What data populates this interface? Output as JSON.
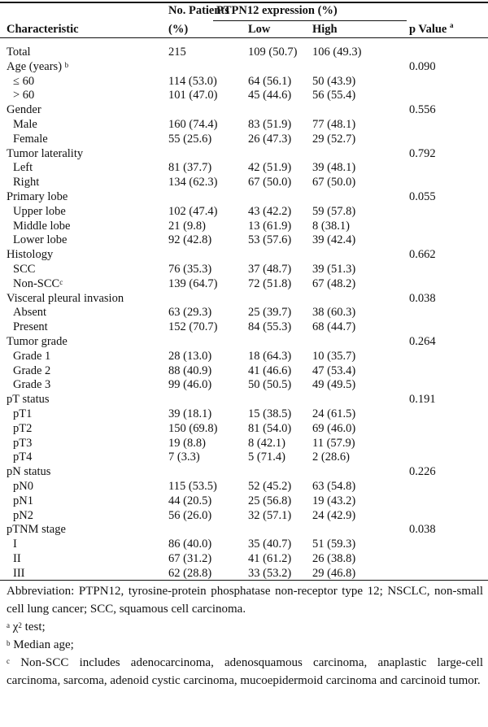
{
  "header": {
    "characteristic": "Characteristic",
    "patients_line1": "No. Patients",
    "patients_line2": "(%)",
    "expression_group": "PTPN12 expression (%)",
    "low": "Low",
    "high": "High",
    "p_value": "p Value",
    "p_value_sup": "a"
  },
  "rows": [
    {
      "label": "Total",
      "n": "215",
      "low": "109 (50.7)",
      "high": "106 (49.3)",
      "p": "",
      "sub": false
    },
    {
      "label": "Age (years)",
      "sup": "b",
      "n": "",
      "low": "",
      "high": "",
      "p": "0.090",
      "sub": false
    },
    {
      "label": "≤ 60",
      "n": "114 (53.0)",
      "low": "64 (56.1)",
      "high": "50 (43.9)",
      "p": "",
      "sub": true
    },
    {
      "label": "> 60",
      "n": "101 (47.0)",
      "low": "45 (44.6)",
      "high": "56 (55.4)",
      "p": "",
      "sub": true
    },
    {
      "label": "Gender",
      "n": "",
      "low": "",
      "high": "",
      "p": "0.556",
      "sub": false
    },
    {
      "label": "Male",
      "n": "160 (74.4)",
      "low": "83 (51.9)",
      "high": "77 (48.1)",
      "p": "",
      "sub": true
    },
    {
      "label": "Female",
      "n": "55 (25.6)",
      "low": "26 (47.3)",
      "high": "29 (52.7)",
      "p": "",
      "sub": true
    },
    {
      "label": "Tumor laterality",
      "n": "",
      "low": "",
      "high": "",
      "p": "0.792",
      "sub": false
    },
    {
      "label": "Left",
      "n": "81 (37.7)",
      "low": "42 (51.9)",
      "high": "39 (48.1)",
      "p": "",
      "sub": true
    },
    {
      "label": "Right",
      "n": "134 (62.3)",
      "low": "67 (50.0)",
      "high": "67 (50.0)",
      "p": "",
      "sub": true
    },
    {
      "label": "Primary lobe",
      "n": "",
      "low": "",
      "high": "",
      "p": "0.055",
      "sub": false
    },
    {
      "label": "Upper lobe",
      "n": "102 (47.4)",
      "low": "43 (42.2)",
      "high": "59 (57.8)",
      "p": "",
      "sub": true
    },
    {
      "label": "Middle lobe",
      "n": "21 (9.8)",
      "low": "13 (61.9)",
      "high": "8 (38.1)",
      "p": "",
      "sub": true
    },
    {
      "label": "Lower lobe",
      "n": "92 (42.8)",
      "low": "53 (57.6)",
      "high": "39 (42.4)",
      "p": "",
      "sub": true
    },
    {
      "label": "Histology",
      "n": "",
      "low": "",
      "high": "",
      "p": "0.662",
      "sub": false
    },
    {
      "label": "SCC",
      "n": "76 (35.3)",
      "low": "37 (48.7)",
      "high": "39 (51.3)",
      "p": "",
      "sub": true
    },
    {
      "label": "Non-SCC",
      "sup": "c",
      "n": "139 (64.7)",
      "low": "72 (51.8)",
      "high": "67 (48.2)",
      "p": "",
      "sub": true
    },
    {
      "label": "Visceral pleural invasion",
      "n": "",
      "low": "",
      "high": "",
      "p": "0.038",
      "sub": false
    },
    {
      "label": "Absent",
      "n": "63 (29.3)",
      "low": "25 (39.7)",
      "high": "38 (60.3)",
      "p": "",
      "sub": true
    },
    {
      "label": "Present",
      "n": "152 (70.7)",
      "low": "84 (55.3)",
      "high": "68 (44.7)",
      "p": "",
      "sub": true
    },
    {
      "label": "Tumor grade",
      "n": "",
      "low": "",
      "high": "",
      "p": "0.264",
      "sub": false
    },
    {
      "label": "Grade 1",
      "n": "28 (13.0)",
      "low": "18 (64.3)",
      "high": "10 (35.7)",
      "p": "",
      "sub": true
    },
    {
      "label": "Grade 2",
      "n": "88 (40.9)",
      "low": "41 (46.6)",
      "high": "47 (53.4)",
      "p": "",
      "sub": true
    },
    {
      "label": "Grade 3",
      "n": "99 (46.0)",
      "low": "50 (50.5)",
      "high": "49 (49.5)",
      "p": "",
      "sub": true
    },
    {
      "label": "pT status",
      "n": "",
      "low": "",
      "high": "",
      "p": "0.191",
      "sub": false
    },
    {
      "label": "pT1",
      "n": "39 (18.1)",
      "low": "15 (38.5)",
      "high": "24 (61.5)",
      "p": "",
      "sub": true
    },
    {
      "label": "pT2",
      "n": "150 (69.8)",
      "low": "81 (54.0)",
      "high": "69 (46.0)",
      "p": "",
      "sub": true
    },
    {
      "label": "pT3",
      "n": "19 (8.8)",
      "low": "8 (42.1)",
      "high": "11 (57.9)",
      "p": "",
      "sub": true
    },
    {
      "label": "pT4",
      "n": "7 (3.3)",
      "low": "5 (71.4)",
      "high": "2 (28.6)",
      "p": "",
      "sub": true
    },
    {
      "label": "pN status",
      "n": "",
      "low": "",
      "high": "",
      "p": "0.226",
      "sub": false
    },
    {
      "label": "pN0",
      "n": "115 (53.5)",
      "low": "52 (45.2)",
      "high": "63 (54.8)",
      "p": "",
      "sub": true
    },
    {
      "label": "pN1",
      "n": "44 (20.5)",
      "low": "25 (56.8)",
      "high": "19 (43.2)",
      "p": "",
      "sub": true
    },
    {
      "label": "pN2",
      "n": "56 (26.0)",
      "low": "32 (57.1)",
      "high": "24 (42.9)",
      "p": "",
      "sub": true
    },
    {
      "label": "pTNM stage",
      "n": "",
      "low": "",
      "high": "",
      "p": "0.038",
      "sub": false
    },
    {
      "label": "I",
      "n": "86 (40.0)",
      "low": "35 (40.7)",
      "high": "51 (59.3)",
      "p": "",
      "sub": true
    },
    {
      "label": "II",
      "n": "67 (31.2)",
      "low": "41 (61.2)",
      "high": "26 (38.8)",
      "p": "",
      "sub": true
    },
    {
      "label": "III",
      "n": "62 (28.8)",
      "low": "33 (53.2)",
      "high": "29 (46.8)",
      "p": "",
      "sub": true
    }
  ],
  "notes": {
    "abbreviation": "Abbreviation: PTPN12, tyrosine-protein phosphatase non-receptor type 12; NSCLC, non-small cell lung cancer; SCC, squamous cell carcinoma.",
    "a_sup": "a",
    "a_chi": "χ",
    "a_chi_sup": "2",
    "a_text": " test;",
    "b_sup": "b",
    "b_text": " Median age;",
    "c_sup": "c",
    "c_text": " Non-SCC includes adenocarcinoma, adenosquamous carcinoma, anaplastic large-cell carcinoma, sarcoma, adenoid cystic carcinoma, mucoepidermoid carcinoma and carcinoid tumor."
  }
}
